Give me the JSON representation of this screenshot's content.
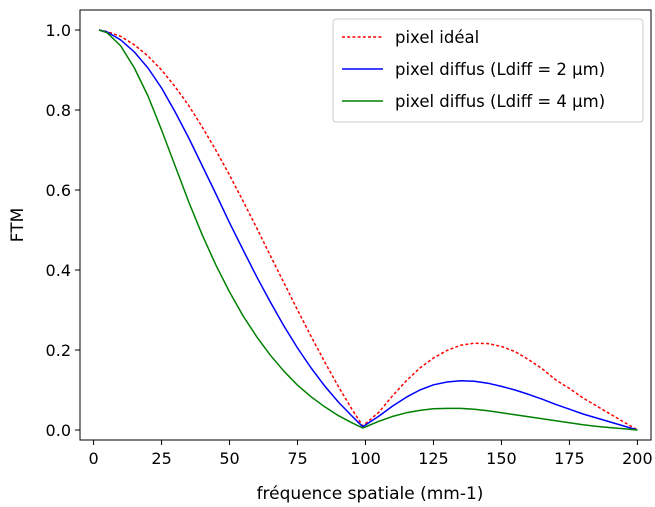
{
  "chart_data": {
    "type": "line",
    "title": "",
    "xlabel": "fréquence spatiale (mm-1)",
    "ylabel": "FTM",
    "xlim": [
      -5,
      205
    ],
    "ylim": [
      -0.025,
      1.05
    ],
    "xticks": [
      0,
      25,
      50,
      75,
      100,
      125,
      150,
      175,
      200
    ],
    "yticks": [
      0.0,
      0.2,
      0.4,
      0.6,
      0.8,
      1.0
    ],
    "xtick_labels": [
      "0",
      "25",
      "50",
      "75",
      "100",
      "125",
      "150",
      "175",
      "200"
    ],
    "ytick_labels": [
      "0.0",
      "0.2",
      "0.4",
      "0.6",
      "0.8",
      "1.0"
    ],
    "grid": false,
    "legend_position": "top-right",
    "series": [
      {
        "name": "pixel idéal",
        "color": "#ff0000",
        "style": "dotted",
        "x": [
          2,
          5,
          10,
          15,
          20,
          25,
          30,
          35,
          40,
          45,
          50,
          55,
          60,
          65,
          70,
          75,
          80,
          85,
          90,
          95,
          99,
          105,
          110,
          115,
          120,
          125,
          130,
          135,
          140,
          145,
          150,
          155,
          160,
          165,
          170,
          175,
          180,
          185,
          190,
          195,
          200
        ],
        "y": [
          1.0,
          0.996,
          0.984,
          0.963,
          0.935,
          0.9,
          0.858,
          0.811,
          0.757,
          0.699,
          0.637,
          0.572,
          0.505,
          0.436,
          0.368,
          0.3,
          0.234,
          0.17,
          0.109,
          0.052,
          0.01,
          0.045,
          0.086,
          0.123,
          0.155,
          0.18,
          0.199,
          0.212,
          0.217,
          0.216,
          0.209,
          0.196,
          0.176,
          0.153,
          0.125,
          0.104,
          0.08,
          0.06,
          0.04,
          0.02,
          0.0
        ]
      },
      {
        "name": "pixel diffus (Ldiff = 2 µm)",
        "color": "#0000ff",
        "style": "solid",
        "x": [
          2,
          5,
          10,
          15,
          20,
          25,
          30,
          35,
          40,
          45,
          50,
          55,
          60,
          65,
          70,
          75,
          80,
          85,
          90,
          95,
          99,
          105,
          110,
          115,
          120,
          125,
          130,
          135,
          140,
          145,
          150,
          155,
          160,
          165,
          170,
          175,
          180,
          185,
          190,
          195,
          200
        ],
        "y": [
          1.0,
          0.995,
          0.975,
          0.945,
          0.905,
          0.855,
          0.795,
          0.73,
          0.66,
          0.59,
          0.518,
          0.45,
          0.383,
          0.32,
          0.26,
          0.205,
          0.155,
          0.11,
          0.07,
          0.035,
          0.008,
          0.035,
          0.06,
          0.082,
          0.1,
          0.113,
          0.12,
          0.123,
          0.122,
          0.117,
          0.109,
          0.1,
          0.089,
          0.077,
          0.064,
          0.052,
          0.04,
          0.03,
          0.02,
          0.01,
          0.0
        ]
      },
      {
        "name": "pixel diffus (Ldiff = 4 µm)",
        "color": "#008000",
        "style": "solid",
        "x": [
          2,
          5,
          10,
          15,
          20,
          25,
          30,
          35,
          40,
          45,
          50,
          55,
          60,
          65,
          70,
          75,
          80,
          85,
          90,
          95,
          99,
          105,
          110,
          115,
          120,
          125,
          130,
          135,
          140,
          145,
          150,
          155,
          160,
          165,
          170,
          175,
          180,
          185,
          190,
          195,
          200
        ],
        "y": [
          1.0,
          0.993,
          0.96,
          0.905,
          0.835,
          0.75,
          0.66,
          0.57,
          0.487,
          0.412,
          0.345,
          0.285,
          0.233,
          0.187,
          0.147,
          0.112,
          0.083,
          0.058,
          0.036,
          0.018,
          0.005,
          0.022,
          0.034,
          0.043,
          0.049,
          0.053,
          0.054,
          0.054,
          0.052,
          0.048,
          0.043,
          0.038,
          0.033,
          0.028,
          0.023,
          0.018,
          0.013,
          0.009,
          0.006,
          0.003,
          0.0
        ]
      }
    ]
  }
}
